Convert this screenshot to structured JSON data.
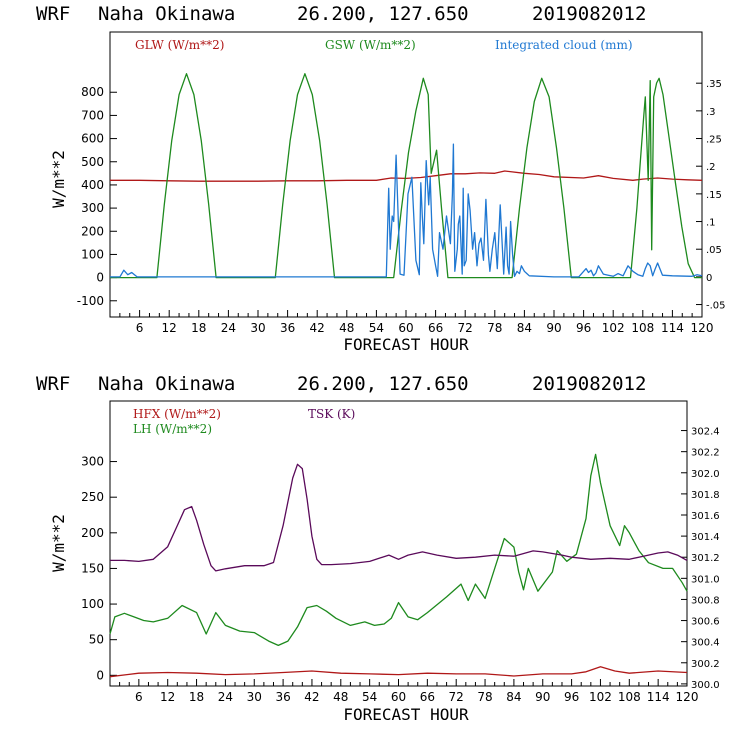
{
  "chart_data": [
    {
      "type": "line",
      "header": {
        "model": "WRF",
        "location": "Naha Okinawa",
        "coords": "26.200, 127.650",
        "run": "2019082012"
      },
      "xlabel": "FORECAST HOUR",
      "ylabel": "W/m**2",
      "xlim": [
        0,
        120
      ],
      "ylim": [
        -170,
        1060
      ],
      "y2lim": [
        -0.0725,
        0.4425
      ],
      "x_ticks": [
        "6",
        "12",
        "18",
        "24",
        "30",
        "36",
        "42",
        "48",
        "54",
        "60",
        "66",
        "72",
        "78",
        "84",
        "90",
        "96",
        "102",
        "108",
        "114",
        "120"
      ],
      "y_ticks": [
        "-100",
        "0",
        "100",
        "200",
        "300",
        "400",
        "500",
        "600",
        "700",
        "800"
      ],
      "y2_ticks": [
        "-.05",
        "0",
        ".05",
        ".1",
        ".15",
        ".2",
        ".25",
        ".3",
        ".35"
      ],
      "legend": [
        {
          "label": "GLW (W/m**2)",
          "color": "#b01818"
        },
        {
          "label": "GSW (W/m**2)",
          "color": "#1e8a1e"
        },
        {
          "label": "Integrated cloud (mm)",
          "color": "#1f78d2"
        }
      ],
      "series": [
        {
          "name": "GLW",
          "axis": "left",
          "color": "#b01818",
          "x": [
            0,
            6,
            12,
            18,
            24,
            30,
            36,
            42,
            48,
            54,
            57,
            60,
            63,
            66,
            69,
            72,
            75,
            78,
            80,
            84,
            87,
            90,
            96,
            99,
            102,
            106,
            108,
            111,
            114,
            117,
            120
          ],
          "y": [
            420,
            420,
            418,
            416,
            416,
            416,
            418,
            418,
            420,
            420,
            430,
            428,
            432,
            440,
            448,
            448,
            452,
            450,
            460,
            450,
            445,
            435,
            430,
            440,
            428,
            420,
            425,
            430,
            425,
            422,
            420
          ]
        },
        {
          "name": "GSW",
          "axis": "left",
          "color": "#1e8a1e",
          "x": [
            0,
            9.5,
            11,
            12.5,
            14,
            15.5,
            17,
            18.5,
            20,
            21.5,
            22.5,
            33.5,
            35,
            36.5,
            38,
            39.5,
            41,
            42.5,
            44,
            45.5,
            46.5,
            57.5,
            59,
            60.5,
            62,
            63.5,
            64.5,
            65.1,
            66.2,
            67.2,
            68.5,
            70.5,
            81.5,
            83,
            84.5,
            86,
            87.5,
            89,
            90.5,
            92,
            93.5,
            94.5,
            105.5,
            106.8,
            107.5,
            108.2,
            108.5,
            109.1,
            109.5,
            109.8,
            110.2,
            110.8,
            111.3,
            112.1,
            113.3,
            114.6,
            115.9,
            117.2,
            118.5,
            120
          ],
          "y": [
            0,
            0,
            315,
            590,
            790,
            880,
            790,
            590,
            315,
            0,
            0,
            0,
            315,
            590,
            790,
            880,
            790,
            590,
            315,
            0,
            0,
            0,
            285,
            540,
            720,
            860,
            790,
            450,
            550,
            300,
            0,
            0,
            0,
            300,
            560,
            760,
            860,
            780,
            560,
            300,
            0,
            0,
            0,
            300,
            500,
            700,
            780,
            420,
            850,
            120,
            780,
            840,
            860,
            790,
            610,
            410,
            220,
            60,
            0,
            0
          ]
        },
        {
          "name": "Integrated cloud",
          "axis": "right",
          "color": "#1f78d2",
          "x": [
            0,
            2,
            2.8,
            3.6,
            4.4,
            5.5,
            10,
            20,
            30,
            40,
            50,
            56,
            56.5,
            56.8,
            57.2,
            57.5,
            58,
            58.8,
            59.6,
            60.4,
            61.2,
            62,
            62.7,
            63,
            63.3,
            63.6,
            64.1,
            64.6,
            64.9,
            65.4,
            66,
            66.4,
            66.8,
            67.5,
            68.2,
            69,
            69.4,
            69.6,
            69.9,
            70.4,
            70.6,
            70.9,
            71.4,
            71.6,
            71.8,
            72.2,
            72.6,
            73,
            73.5,
            73.9,
            74.4,
            74.8,
            75.2,
            75.7,
            76.2,
            76.7,
            77,
            77.5,
            78,
            78.5,
            79.1,
            79.8,
            80.3,
            80.6,
            80.9,
            81.2,
            81.6,
            82,
            82.5,
            83,
            83.4,
            84,
            84.5,
            85,
            90,
            95,
            96.5,
            97,
            97.5,
            98,
            98.5,
            99,
            100,
            101,
            102,
            103,
            104,
            105,
            106,
            107,
            108,
            108.5,
            109,
            109.5,
            110,
            110.5,
            111,
            112,
            114,
            118,
            119,
            120
          ],
          "y": [
            0,
            0,
            0.012,
            0.004,
            0.008,
            0,
            0,
            0,
            0,
            0,
            0,
            0,
            0.16,
            0.05,
            0.11,
            0.1,
            0.22,
            0.005,
            0.003,
            0.15,
            0.18,
            0.03,
            0.004,
            0.17,
            0.11,
            0.06,
            0.21,
            0.13,
            0.18,
            0.05,
            0.02,
            0.001,
            0.08,
            0.05,
            0.11,
            0.06,
            0.15,
            0.24,
            0.01,
            0.05,
            0.095,
            0.11,
            0.005,
            0.16,
            0.02,
            0.03,
            0.15,
            0.12,
            0.05,
            0.08,
            0.02,
            0.06,
            0.07,
            0.03,
            0.14,
            0.04,
            0.01,
            0.05,
            0.08,
            0.015,
            0.13,
            0.005,
            0.09,
            0.02,
            0.005,
            0.1,
            0.04,
            0.001,
            0.01,
            0.006,
            0.02,
            0.01,
            0.006,
            0.002,
            0,
            0,
            0.015,
            0.008,
            0.012,
            0.002,
            0.007,
            0.02,
            0.005,
            0.003,
            0.001,
            0.006,
            0.002,
            0.02,
            0.01,
            0.004,
            0.001,
            0.015,
            0.025,
            0.02,
            0.002,
            0.014,
            0.025,
            0.003,
            0.002,
            0.001,
            0.004,
            0.002
          ]
        }
      ]
    },
    {
      "type": "line",
      "header": {
        "model": "WRF",
        "location": "Naha Okinawa",
        "coords": "26.200, 127.650",
        "run": "2019082012"
      },
      "xlabel": "FORECAST HOUR",
      "ylabel": "W/m**2",
      "xlim": [
        0,
        120
      ],
      "ylim": [
        -15,
        385
      ],
      "y2lim": [
        299.98,
        302.68
      ],
      "x_ticks": [
        "6",
        "12",
        "18",
        "24",
        "30",
        "36",
        "42",
        "48",
        "54",
        "60",
        "66",
        "72",
        "78",
        "84",
        "90",
        "96",
        "102",
        "108",
        "114",
        "120"
      ],
      "y_ticks": [
        "0",
        "50",
        "100",
        "150",
        "200",
        "250",
        "300"
      ],
      "y2_ticks": [
        "300.0",
        "300.2",
        "300.4",
        "300.6",
        "300.8",
        "301.0",
        "301.2",
        "301.4",
        "301.6",
        "301.8",
        "302.0",
        "302.2",
        "302.4"
      ],
      "legend": [
        {
          "label": "HFX (W/m**2)",
          "color": "#b01818"
        },
        {
          "label": "LH  (W/m**2)",
          "color": "#1e8a1e"
        },
        {
          "label": "TSK (K)",
          "color": "#5a0a5a"
        }
      ],
      "series": [
        {
          "name": "HFX",
          "axis": "left",
          "color": "#b01818",
          "x": [
            0,
            6,
            12,
            18,
            24,
            30,
            36,
            42,
            48,
            54,
            60,
            66,
            72,
            78,
            84,
            90,
            96,
            99,
            102,
            105,
            108,
            114,
            120
          ],
          "y": [
            -2,
            3,
            4,
            3,
            1,
            2,
            4,
            6,
            3,
            2,
            1,
            3,
            2,
            2,
            -1,
            2,
            2,
            5,
            12,
            6,
            3,
            6,
            4
          ]
        },
        {
          "name": "LH",
          "axis": "left",
          "color": "#1e8a1e",
          "x": [
            0,
            1,
            3,
            5,
            7,
            9,
            12,
            15,
            18,
            20,
            22,
            24,
            27,
            30,
            33,
            35,
            37,
            39,
            41,
            43,
            45,
            47,
            50,
            53,
            55,
            57,
            58.5,
            60,
            62,
            64,
            66,
            70,
            73,
            74.5,
            76,
            78,
            80,
            82,
            84,
            85,
            86,
            87,
            89,
            92,
            93,
            95,
            97,
            99,
            100,
            101,
            102,
            104,
            106,
            107,
            108,
            110,
            112,
            115,
            117,
            119,
            120
          ],
          "y": [
            58,
            82,
            87,
            82,
            77,
            75,
            80,
            98,
            88,
            58,
            88,
            70,
            62,
            60,
            48,
            42,
            48,
            68,
            95,
            98,
            90,
            80,
            70,
            75,
            70,
            72,
            80,
            102,
            82,
            78,
            88,
            110,
            128,
            105,
            128,
            108,
            150,
            192,
            180,
            145,
            120,
            150,
            118,
            145,
            175,
            160,
            170,
            220,
            280,
            310,
            270,
            210,
            182,
            210,
            200,
            175,
            158,
            150,
            150,
            130,
            118
          ]
        },
        {
          "name": "TSK",
          "axis": "right",
          "color": "#5a0a5a",
          "x": [
            0,
            3,
            6,
            9,
            12,
            14,
            15.5,
            17,
            18,
            19.5,
            21,
            22,
            24,
            28,
            30,
            32,
            34,
            36,
            38,
            39,
            40,
            41,
            42,
            43,
            44,
            46,
            50,
            54,
            58,
            60,
            62,
            65,
            68,
            72,
            76,
            80,
            84,
            88,
            90,
            94,
            96,
            100,
            104,
            108,
            112,
            114,
            116,
            118,
            120
          ],
          "y": [
            301.17,
            301.17,
            301.16,
            301.18,
            301.3,
            301.5,
            301.65,
            301.68,
            301.55,
            301.32,
            301.12,
            301.07,
            301.09,
            301.12,
            301.12,
            301.12,
            301.15,
            301.5,
            301.95,
            302.08,
            302.04,
            301.75,
            301.4,
            301.18,
            301.13,
            301.13,
            301.14,
            301.16,
            301.22,
            301.18,
            301.22,
            301.25,
            301.22,
            301.19,
            301.2,
            301.22,
            301.21,
            301.26,
            301.25,
            301.22,
            301.2,
            301.18,
            301.19,
            301.18,
            301.22,
            301.24,
            301.25,
            301.22,
            301.17
          ]
        }
      ]
    }
  ]
}
